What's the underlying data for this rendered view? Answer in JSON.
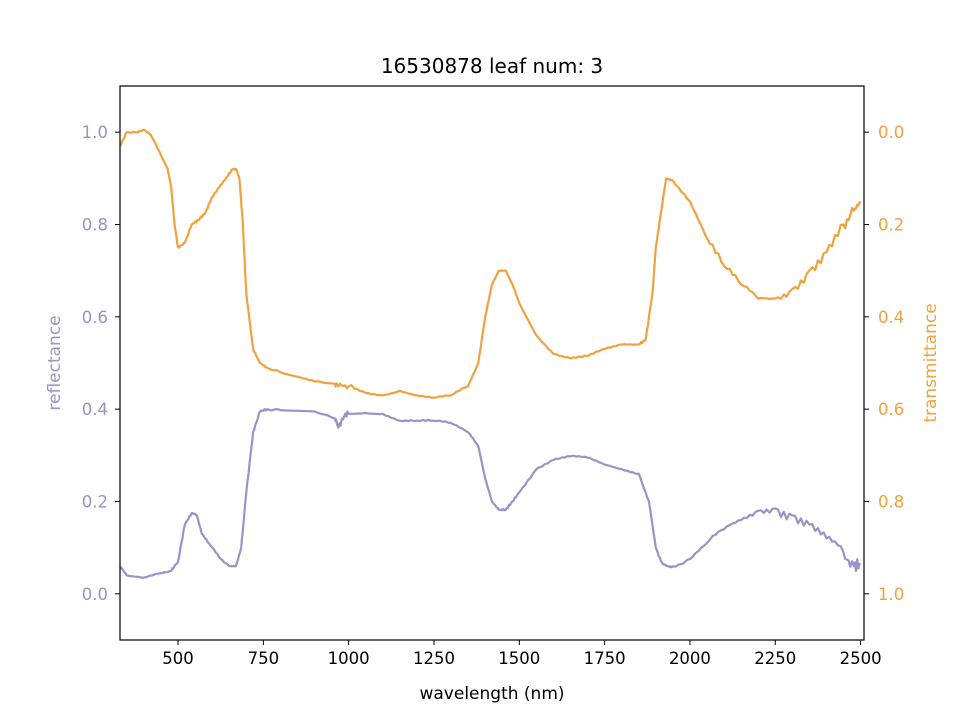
{
  "chart_data": {
    "type": "line",
    "title": "16530878 leaf num: 3",
    "xlabel": "wavelength (nm)",
    "xlim": [
      330,
      2510
    ],
    "xticks": [
      500,
      750,
      1000,
      1250,
      1500,
      1750,
      2000,
      2250,
      2500
    ],
    "colors": {
      "reflectance": "#9b93c7",
      "transmittance": "#f0a23e"
    },
    "left_axis": {
      "label": "reflectance",
      "lim": [
        -0.1,
        1.1
      ],
      "ticks": [
        "0.0",
        "0.2",
        "0.4",
        "0.6",
        "0.8",
        "1.0"
      ]
    },
    "right_axis": {
      "label": "transmittance",
      "lim": [
        1.1,
        -0.1
      ],
      "inverted": true,
      "ticks": [
        "0.0",
        "0.2",
        "0.4",
        "0.6",
        "0.8",
        "1.0"
      ]
    },
    "series": [
      {
        "name": "reflectance",
        "axis": "left",
        "x": [
          330,
          350,
          400,
          450,
          480,
          500,
          520,
          540,
          555,
          570,
          590,
          620,
          650,
          670,
          685,
          700,
          720,
          740,
          760,
          800,
          900,
          960,
          970,
          990,
          1000,
          1050,
          1100,
          1150,
          1200,
          1250,
          1300,
          1350,
          1380,
          1400,
          1420,
          1440,
          1460,
          1480,
          1500,
          1550,
          1600,
          1650,
          1700,
          1750,
          1800,
          1850,
          1880,
          1900,
          1910,
          1920,
          1940,
          1960,
          2000,
          2050,
          2100,
          2150,
          2200,
          2250,
          2300,
          2350,
          2400,
          2450,
          2480,
          2500
        ],
        "y": [
          0.06,
          0.04,
          0.035,
          0.045,
          0.05,
          0.07,
          0.15,
          0.175,
          0.17,
          0.13,
          0.11,
          0.08,
          0.06,
          0.06,
          0.1,
          0.22,
          0.35,
          0.395,
          0.4,
          0.398,
          0.395,
          0.38,
          0.36,
          0.39,
          0.39,
          0.392,
          0.39,
          0.375,
          0.375,
          0.375,
          0.37,
          0.35,
          0.32,
          0.25,
          0.2,
          0.182,
          0.182,
          0.2,
          0.22,
          0.27,
          0.29,
          0.298,
          0.295,
          0.28,
          0.27,
          0.26,
          0.2,
          0.1,
          0.08,
          0.065,
          0.058,
          0.06,
          0.075,
          0.11,
          0.14,
          0.16,
          0.18,
          0.185,
          0.17,
          0.15,
          0.12,
          0.09,
          0.06,
          0.065
        ]
      },
      {
        "name": "transmittance",
        "axis": "right",
        "x": [
          330,
          350,
          380,
          400,
          420,
          450,
          470,
          480,
          490,
          500,
          520,
          540,
          560,
          580,
          600,
          620,
          640,
          660,
          670,
          680,
          690,
          700,
          720,
          740,
          760,
          800,
          850,
          900,
          960,
          970,
          1000,
          1050,
          1100,
          1150,
          1200,
          1250,
          1300,
          1350,
          1380,
          1400,
          1420,
          1440,
          1460,
          1480,
          1500,
          1550,
          1600,
          1650,
          1700,
          1750,
          1800,
          1850,
          1870,
          1890,
          1900,
          1910,
          1930,
          1950,
          2000,
          2050,
          2100,
          2150,
          2200,
          2250,
          2300,
          2350,
          2400,
          2450,
          2480,
          2500
        ],
        "y": [
          0.03,
          0.0,
          0.0,
          -0.005,
          0.005,
          0.05,
          0.08,
          0.12,
          0.2,
          0.25,
          0.24,
          0.2,
          0.19,
          0.175,
          0.14,
          0.12,
          0.1,
          0.08,
          0.08,
          0.1,
          0.2,
          0.35,
          0.47,
          0.5,
          0.51,
          0.52,
          0.53,
          0.54,
          0.545,
          0.55,
          0.55,
          0.565,
          0.57,
          0.56,
          0.57,
          0.575,
          0.57,
          0.55,
          0.5,
          0.4,
          0.33,
          0.3,
          0.3,
          0.33,
          0.37,
          0.44,
          0.48,
          0.49,
          0.485,
          0.47,
          0.46,
          0.46,
          0.45,
          0.35,
          0.25,
          0.2,
          0.1,
          0.105,
          0.15,
          0.23,
          0.29,
          0.33,
          0.36,
          0.36,
          0.34,
          0.3,
          0.26,
          0.2,
          0.17,
          0.15
        ]
      }
    ]
  }
}
